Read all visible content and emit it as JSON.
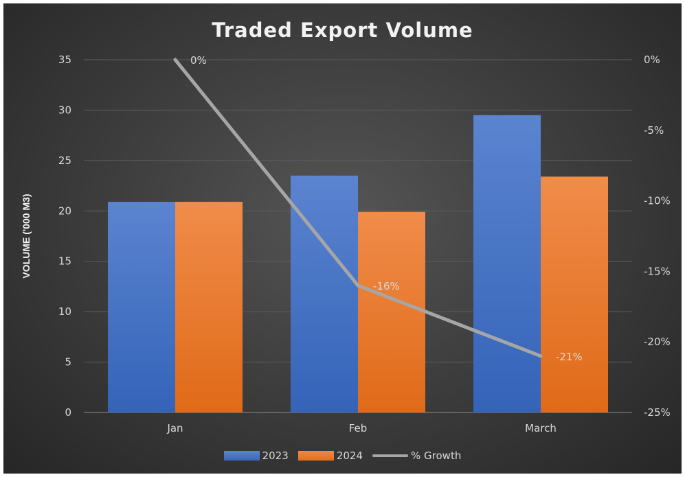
{
  "chart_data": {
    "type": "bar",
    "title": "Traded Export Volume",
    "ylabel": "VOLUME ('000 M3)",
    "xlabel": "",
    "categories": [
      "Jan",
      "Feb",
      "March"
    ],
    "ylim": [
      0,
      35
    ],
    "yticks": [
      "0",
      "5",
      "10",
      "15",
      "20",
      "25",
      "30",
      "35"
    ],
    "y2lim": [
      -25,
      0
    ],
    "y2ticks": [
      "-25%",
      "-20%",
      "-15%",
      "-10%",
      "-5%",
      "0%"
    ],
    "series": [
      {
        "name": "2023",
        "type": "bar",
        "axis": "left",
        "color": "#4472c4",
        "values": [
          20.9,
          23.5,
          29.5
        ]
      },
      {
        "name": "2024",
        "type": "bar",
        "axis": "left",
        "color": "#ed7d31",
        "values": [
          20.9,
          19.9,
          23.4
        ]
      },
      {
        "name": "% Growth",
        "type": "line",
        "axis": "right",
        "color": "#a6a6a6",
        "values": [
          0,
          -16,
          -21
        ],
        "labels": [
          "0%",
          "-16%",
          "-21%"
        ]
      }
    ],
    "gridlines": true,
    "legend_position": "bottom"
  }
}
